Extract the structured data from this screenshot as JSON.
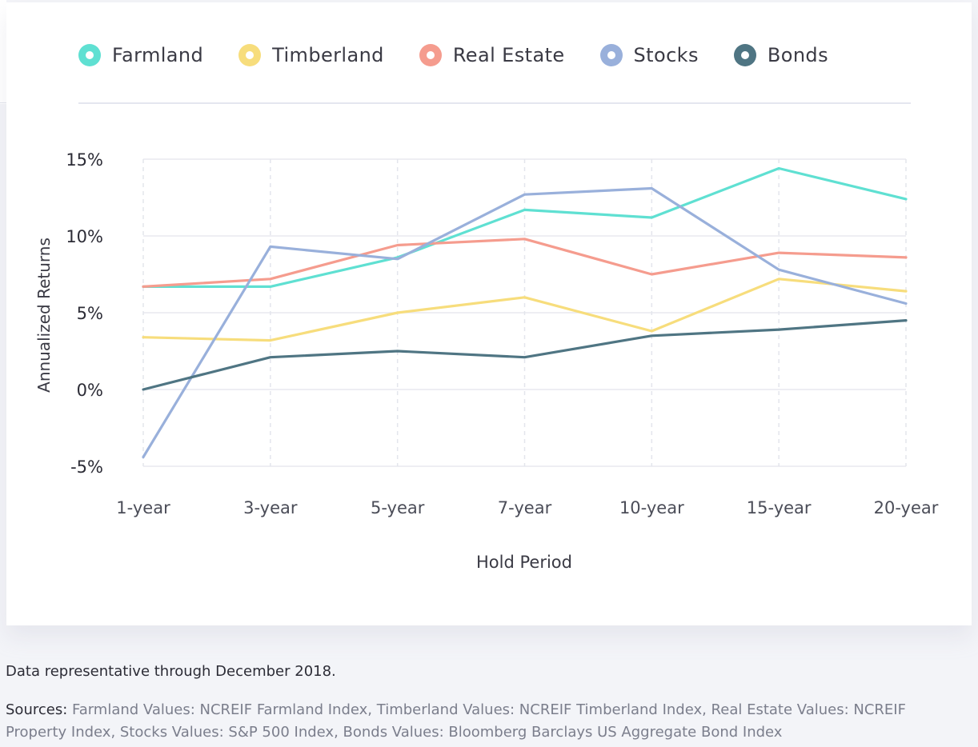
{
  "chart_data": {
    "type": "line",
    "categories": [
      "1-year",
      "3-year",
      "5-year",
      "7-year",
      "10-year",
      "15-year",
      "20-year"
    ],
    "series": [
      {
        "name": "Farmland",
        "color": "#5fe0d2",
        "values": [
          6.7,
          6.7,
          8.6,
          11.7,
          11.2,
          14.4,
          12.4
        ]
      },
      {
        "name": "Timberland",
        "color": "#f7dd7c",
        "values": [
          3.4,
          3.2,
          5.0,
          6.0,
          3.8,
          7.2,
          6.4
        ]
      },
      {
        "name": "Real Estate",
        "color": "#f59c8e",
        "values": [
          6.7,
          7.2,
          9.4,
          9.8,
          7.5,
          8.9,
          8.6
        ]
      },
      {
        "name": "Stocks",
        "color": "#99b0db",
        "values": [
          -4.4,
          9.3,
          8.5,
          12.7,
          13.1,
          7.8,
          5.6
        ]
      },
      {
        "name": "Bonds",
        "color": "#4f7583",
        "values": [
          0.0,
          2.1,
          2.5,
          2.1,
          3.5,
          3.9,
          4.5
        ]
      }
    ],
    "yticks": [
      "15%",
      "10%",
      "5%",
      "0%",
      "-5%"
    ],
    "ylim": [
      -5,
      15
    ],
    "xlabel": "Hold Period",
    "ylabel": "Annualized Returns",
    "legend_position": "top",
    "grid": true
  },
  "legend": [
    {
      "label": "Farmland",
      "color": "#5fe0d2"
    },
    {
      "label": "Timberland",
      "color": "#f7dd7c"
    },
    {
      "label": "Real Estate",
      "color": "#f59c8e"
    },
    {
      "label": "Stocks",
      "color": "#99b0db"
    },
    {
      "label": "Bonds",
      "color": "#4f7583"
    }
  ],
  "footer": {
    "note": "Data representative through December 2018.",
    "sources_label": "Sources:",
    "sources_text": " Farmland Values: NCREIF Farmland Index, Timberland Values: NCREIF Timberland Index, Real Estate Values: NCREIF Property Index, Stocks Values: S&P 500 Index, Bonds Values: Bloomberg Barclays US Aggregate Bond Index"
  }
}
